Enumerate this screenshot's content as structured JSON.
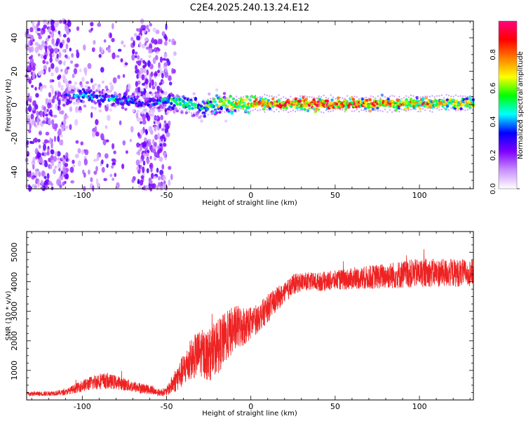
{
  "chart_data": [
    {
      "type": "heatmap",
      "title": "C2E4.2025.240.13.24.E12",
      "xlabel": "Height of straight line (km)",
      "ylabel": "Frequency (Hz)",
      "xlim": [
        -133,
        132
      ],
      "ylim": [
        -50,
        50
      ],
      "xticks": [
        -100,
        -50,
        0,
        50,
        100
      ],
      "yticks": [
        -40,
        -20,
        0,
        20,
        40
      ],
      "colorbar": {
        "label": "Normalized spectral amplitude",
        "range": [
          0,
          1
        ],
        "ticks": [
          0.0,
          0.2,
          0.4,
          0.6,
          0.8
        ],
        "colors": [
          "#ffffff",
          "#c890ff",
          "#8000ff",
          "#0000ff",
          "#00ffff",
          "#00ff00",
          "#ffff00",
          "#ff8000",
          "#ff0000",
          "#ff0080"
        ]
      },
      "ridge": {
        "x": [
          -110,
          -100,
          -90,
          -80,
          -70,
          -60,
          -50,
          -40,
          -30,
          -20,
          -10,
          0,
          10,
          20,
          30,
          40,
          50,
          60,
          70,
          80,
          90,
          100,
          110,
          120,
          130
        ],
        "center_hz": [
          6,
          5,
          4,
          3,
          2,
          1,
          3,
          1,
          -2,
          0.5,
          0.5,
          1,
          1,
          0.5,
          0.5,
          0.5,
          0.5,
          0.5,
          0.5,
          0.5,
          0.5,
          1,
          1,
          1,
          1
        ],
        "amplitude": [
          0.3,
          0.45,
          0.4,
          0.45,
          0.4,
          0.35,
          0.55,
          0.6,
          0.5,
          0.7,
          0.75,
          0.8,
          0.85,
          0.9,
          0.9,
          0.9,
          0.9,
          0.9,
          0.85,
          0.85,
          0.8,
          0.8,
          0.75,
          0.7,
          0.7
        ]
      }
    },
    {
      "type": "line",
      "xlabel": "Height of straight line (km)",
      "ylabel": "SNR (10 * v/v)",
      "xlim": [
        -133,
        132
      ],
      "ylim": [
        0,
        5700
      ],
      "xticks": [
        -100,
        -50,
        0,
        50,
        100
      ],
      "yticks": [
        1000,
        2000,
        3000,
        4000,
        5000
      ],
      "color": "#ee2222",
      "envelope": {
        "x": [
          -133,
          -120,
          -110,
          -100,
          -90,
          -80,
          -70,
          -60,
          -55,
          -50,
          -45,
          -40,
          -35,
          -30,
          -25,
          -20,
          -15,
          -10,
          -5,
          0,
          5,
          10,
          15,
          20,
          25,
          30,
          40,
          50,
          60,
          70,
          80,
          90,
          100,
          110,
          120,
          132
        ],
        "mean": [
          200,
          220,
          260,
          480,
          650,
          600,
          450,
          350,
          250,
          280,
          650,
          1000,
          1400,
          1600,
          1500,
          1800,
          2100,
          2400,
          2500,
          2600,
          2800,
          3100,
          3400,
          3600,
          3900,
          4000,
          4000,
          4050,
          4100,
          4150,
          4200,
          4250,
          4300,
          4300,
          4300,
          4300
        ],
        "spread": [
          100,
          100,
          120,
          250,
          350,
          300,
          250,
          200,
          150,
          180,
          500,
          700,
          900,
          1000,
          1100,
          1200,
          1100,
          1000,
          900,
          700,
          600,
          600,
          500,
          450,
          450,
          400,
          400,
          420,
          450,
          500,
          550,
          600,
          600,
          600,
          600,
          550
        ]
      }
    }
  ]
}
